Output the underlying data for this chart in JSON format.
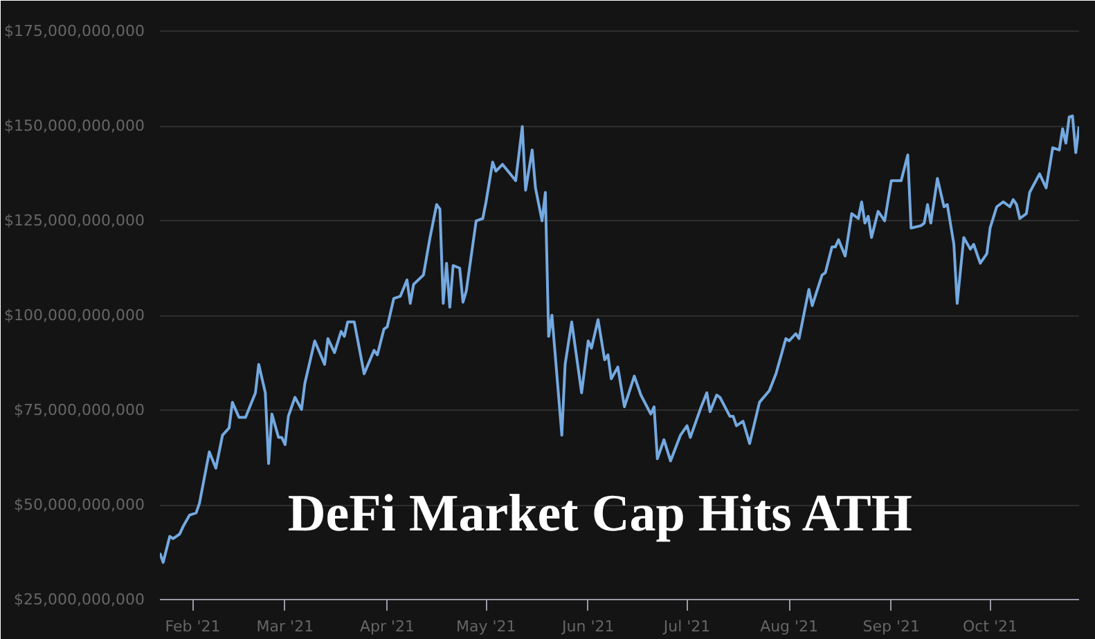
{
  "chart_data": {
    "type": "line",
    "title": "DeFi Market Cap Hits ATH",
    "x": [
      "2021-01-22",
      "2021-01-23",
      "2021-01-25",
      "2021-01-26",
      "2021-01-28",
      "2021-01-29",
      "2021-01-31",
      "2021-02-02",
      "2021-02-03",
      "2021-02-06",
      "2021-02-08",
      "2021-02-10",
      "2021-02-12",
      "2021-02-13",
      "2021-02-15",
      "2021-02-17",
      "2021-02-20",
      "2021-02-21",
      "2021-02-23",
      "2021-02-24",
      "2021-02-25",
      "2021-02-27",
      "2021-02-28",
      "2021-03-01",
      "2021-03-02",
      "2021-03-04",
      "2021-03-06",
      "2021-03-07",
      "2021-03-10",
      "2021-03-13",
      "2021-03-14",
      "2021-03-16",
      "2021-03-18",
      "2021-03-19",
      "2021-03-20",
      "2021-03-22",
      "2021-03-25",
      "2021-03-28",
      "2021-03-29",
      "2021-03-31",
      "2021-04-01",
      "2021-04-03",
      "2021-04-05",
      "2021-04-07",
      "2021-04-08",
      "2021-04-09",
      "2021-04-12",
      "2021-04-14",
      "2021-04-16",
      "2021-04-17",
      "2021-04-18",
      "2021-04-19",
      "2021-04-20",
      "2021-04-21",
      "2021-04-23",
      "2021-04-24",
      "2021-04-25",
      "2021-04-28",
      "2021-04-30",
      "2021-05-01",
      "2021-05-03",
      "2021-05-04",
      "2021-05-06",
      "2021-05-10",
      "2021-05-12",
      "2021-05-13",
      "2021-05-15",
      "2021-05-16",
      "2021-05-18",
      "2021-05-19",
      "2021-05-20",
      "2021-05-21",
      "2021-05-24",
      "2021-05-25",
      "2021-05-27",
      "2021-05-30",
      "2021-06-01",
      "2021-06-02",
      "2021-06-04",
      "2021-06-06",
      "2021-06-07",
      "2021-06-08",
      "2021-06-10",
      "2021-06-12",
      "2021-06-15",
      "2021-06-17",
      "2021-06-20",
      "2021-06-21",
      "2021-06-22",
      "2021-06-24",
      "2021-06-26",
      "2021-06-29",
      "2021-07-01",
      "2021-07-02",
      "2021-07-05",
      "2021-07-07",
      "2021-07-08",
      "2021-07-10",
      "2021-07-11",
      "2021-07-14",
      "2021-07-15",
      "2021-07-16",
      "2021-07-18",
      "2021-07-20",
      "2021-07-23",
      "2021-07-26",
      "2021-07-28",
      "2021-07-31",
      "2021-08-01",
      "2021-08-03",
      "2021-08-04",
      "2021-08-06",
      "2021-08-07",
      "2021-08-08",
      "2021-08-11",
      "2021-08-12",
      "2021-08-14",
      "2021-08-15",
      "2021-08-16",
      "2021-08-18",
      "2021-08-19",
      "2021-08-20",
      "2021-08-22",
      "2021-08-23",
      "2021-08-24",
      "2021-08-25",
      "2021-08-26",
      "2021-08-28",
      "2021-08-30",
      "2021-09-01",
      "2021-09-04",
      "2021-09-06",
      "2021-09-07",
      "2021-09-10",
      "2021-09-11",
      "2021-09-12",
      "2021-09-13",
      "2021-09-15",
      "2021-09-17",
      "2021-09-18",
      "2021-09-20",
      "2021-09-21",
      "2021-09-23",
      "2021-09-25",
      "2021-09-26",
      "2021-09-28",
      "2021-09-30",
      "2021-10-01",
      "2021-10-03",
      "2021-10-05",
      "2021-10-07",
      "2021-10-08",
      "2021-10-09",
      "2021-10-10",
      "2021-10-12",
      "2021-10-13",
      "2021-10-16",
      "2021-10-18",
      "2021-10-20",
      "2021-10-22",
      "2021-10-23",
      "2021-10-24",
      "2021-10-25",
      "2021-10-26",
      "2021-10-27",
      "2021-10-28"
    ],
    "series": [
      {
        "color": "#74a9e0",
        "values": [
          37300000000,
          34800000000,
          41700000000,
          41100000000,
          42300000000,
          44200000000,
          47300000000,
          47900000000,
          50400000000,
          64000000000,
          59700000000,
          68400000000,
          70300000000,
          77100000000,
          73100000000,
          73100000000,
          79600000000,
          87100000000,
          79600000000,
          60900000000,
          74000000000,
          67800000000,
          67800000000,
          65900000000,
          73400000000,
          78400000000,
          75200000000,
          82100000000,
          93300000000,
          87100000000,
          93900000000,
          90200000000,
          95800000000,
          94500000000,
          98300000000,
          98300000000,
          84600000000,
          90800000000,
          89600000000,
          96400000000,
          97000000000,
          104500000000,
          105100000000,
          109400000000,
          103200000000,
          108200000000,
          110700000000,
          120600000000,
          129300000000,
          128100000000,
          103200000000,
          113800000000,
          102200000000,
          113200000000,
          112500000000,
          103500000000,
          106500000000,
          125000000000,
          125600000000,
          130000000000,
          140500000000,
          138100000000,
          139900000000,
          135600000000,
          149900000000,
          133100000000,
          143700000000,
          133700000000,
          125000000000,
          132500000000,
          94500000000,
          100100000000,
          68400000000,
          87100000000,
          98300000000,
          79600000000,
          93300000000,
          91400000000,
          98900000000,
          88300000000,
          89600000000,
          83300000000,
          86400000000,
          75900000000,
          84000000000,
          79000000000,
          74000000000,
          75900000000,
          62200000000,
          67200000000,
          61600000000,
          68400000000,
          70900000000,
          67800000000,
          75200000000,
          79600000000,
          74600000000,
          79000000000,
          78400000000,
          73400000000,
          73400000000,
          70900000000,
          72100000000,
          66200000000,
          77100000000,
          80200000000,
          84600000000,
          93900000000,
          93300000000,
          95200000000,
          93900000000,
          102600000000,
          106900000000,
          102600000000,
          110700000000,
          111300000000,
          118100000000,
          118100000000,
          120000000000,
          115700000000,
          121300000000,
          126900000000,
          125600000000,
          130000000000,
          124400000000,
          126200000000,
          120600000000,
          127500000000,
          125000000000,
          135600000000,
          135600000000,
          142400000000,
          123100000000,
          123700000000,
          124400000000,
          129300000000,
          124400000000,
          136200000000,
          128700000000,
          129300000000,
          118800000000,
          103200000000,
          120600000000,
          117500000000,
          118800000000,
          113800000000,
          116300000000,
          123100000000,
          128700000000,
          130000000000,
          128700000000,
          130600000000,
          129300000000,
          125600000000,
          126900000000,
          132500000000,
          137400000000,
          133700000000,
          144300000000,
          143700000000,
          149300000000,
          145500000000,
          152400000000,
          152700000000,
          143000000000,
          149900000000
        ]
      }
    ],
    "xlim": [
      "2021-01-22",
      "2021-10-28"
    ],
    "xticks": [
      {
        "value": "2021-02-01",
        "label": "Feb '21"
      },
      {
        "value": "2021-03-01",
        "label": "Mar '21"
      },
      {
        "value": "2021-04-01",
        "label": "Apr '21"
      },
      {
        "value": "2021-05-01",
        "label": "May '21"
      },
      {
        "value": "2021-06-01",
        "label": "Jun '21"
      },
      {
        "value": "2021-07-01",
        "label": "Jul '21"
      },
      {
        "value": "2021-08-01",
        "label": "Aug '21"
      },
      {
        "value": "2021-09-01",
        "label": "Sep '21"
      },
      {
        "value": "2021-10-01",
        "label": "Oct '21"
      }
    ],
    "ylim": [
      25000000000,
      178000000000
    ],
    "yticks": [
      {
        "value": 25000000000,
        "label": "$25,000,000,000"
      },
      {
        "value": 50000000000,
        "label": "$50,000,000,000"
      },
      {
        "value": 75000000000,
        "label": "$75,000,000,000"
      },
      {
        "value": 100000000000,
        "label": "$100,000,000,000"
      },
      {
        "value": 125000000000,
        "label": "$125,000,000,000"
      },
      {
        "value": 150000000000,
        "label": "$150,000,000,000"
      },
      {
        "value": 175000000000,
        "label": "$175,000,000,000"
      }
    ],
    "grid": "y",
    "marker": "none",
    "line_style": "solid"
  }
}
